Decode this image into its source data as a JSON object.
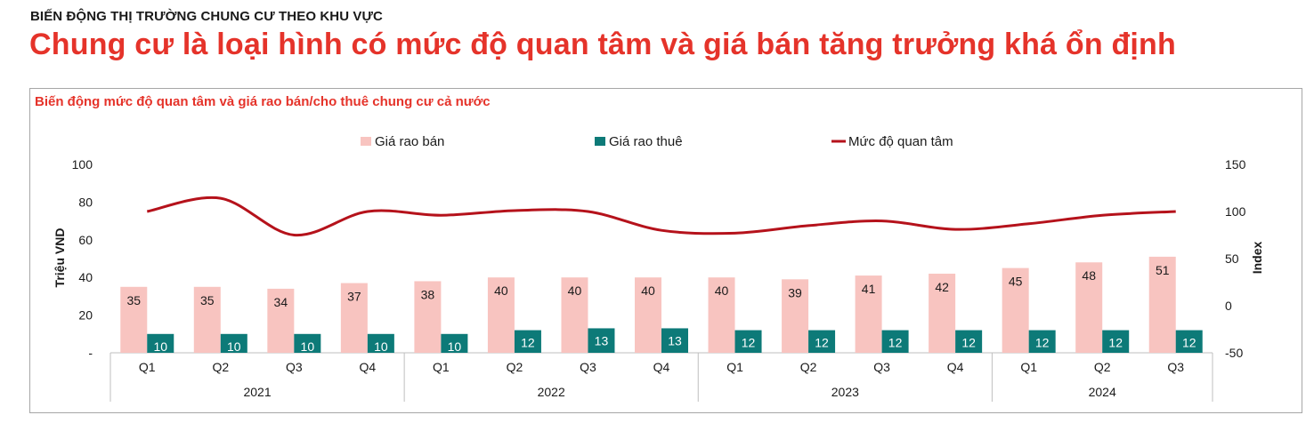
{
  "header": {
    "kicker": "BIẾN ĐỘNG THỊ TRƯỜNG CHUNG CƯ THEO KHU VỰC",
    "headline": "Chung cư là loại hình có mức độ quan tâm và giá bán tăng trưởng khá ổn định"
  },
  "colors": {
    "accent": "#e5332a",
    "sale_bar": "#f8c4c0",
    "rent_bar": "#0d7a78",
    "interest_line": "#b5121b"
  },
  "chart_data": {
    "type": "bar",
    "title": "Biến động mức độ quan tâm và giá rao bán/cho thuê chung cư cả nước",
    "ylabel": "Triệu VND",
    "y2label": "Index",
    "ylim": [
      0,
      100
    ],
    "y2lim": [
      -50,
      150
    ],
    "yticks": [
      "-",
      "20",
      "40",
      "60",
      "80",
      "100"
    ],
    "y2ticks": [
      "-50",
      "0",
      "50",
      "100",
      "150"
    ],
    "legend_position": "top",
    "categories": [
      "Q1",
      "Q2",
      "Q3",
      "Q4",
      "Q1",
      "Q2",
      "Q3",
      "Q4",
      "Q1",
      "Q2",
      "Q3",
      "Q4",
      "Q1",
      "Q2",
      "Q3"
    ],
    "groups": [
      {
        "label": "2021",
        "count": 4
      },
      {
        "label": "2022",
        "count": 4
      },
      {
        "label": "2023",
        "count": 4
      },
      {
        "label": "2024",
        "count": 3
      }
    ],
    "series": [
      {
        "name": "Giá rao bán",
        "kind": "bar",
        "axis": "left",
        "values": [
          35,
          35,
          34,
          37,
          38,
          40,
          40,
          40,
          40,
          39,
          41,
          42,
          45,
          48,
          51
        ]
      },
      {
        "name": "Giá rao thuê",
        "kind": "bar",
        "axis": "left",
        "values": [
          10,
          10,
          10,
          10,
          10,
          12,
          13,
          13,
          12,
          12,
          12,
          12,
          12,
          12,
          12
        ]
      },
      {
        "name": "Mức độ quan tâm",
        "kind": "line",
        "axis": "right",
        "values": [
          100,
          114,
          75,
          100,
          96,
          101,
          100,
          80,
          77,
          85,
          90,
          81,
          87,
          96,
          100
        ]
      }
    ]
  }
}
